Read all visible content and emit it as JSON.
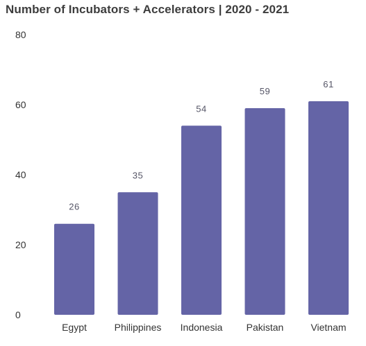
{
  "chart_data": {
    "type": "bar",
    "title": "Number of Incubators + Accelerators | 2020 - 2021",
    "categories": [
      "Egypt",
      "Philippines",
      "Indonesia",
      "Pakistan",
      "Vietnam"
    ],
    "values": [
      26,
      35,
      54,
      59,
      61
    ],
    "data_labels": [
      "26",
      "35",
      "54",
      "59",
      "61"
    ],
    "xlabel": "",
    "ylabel": "",
    "ylim": [
      0,
      80
    ],
    "yticks": [
      "0",
      "20",
      "40",
      "60",
      "80"
    ],
    "grid": false,
    "legend": "none",
    "bar_color": "#6464a6"
  }
}
